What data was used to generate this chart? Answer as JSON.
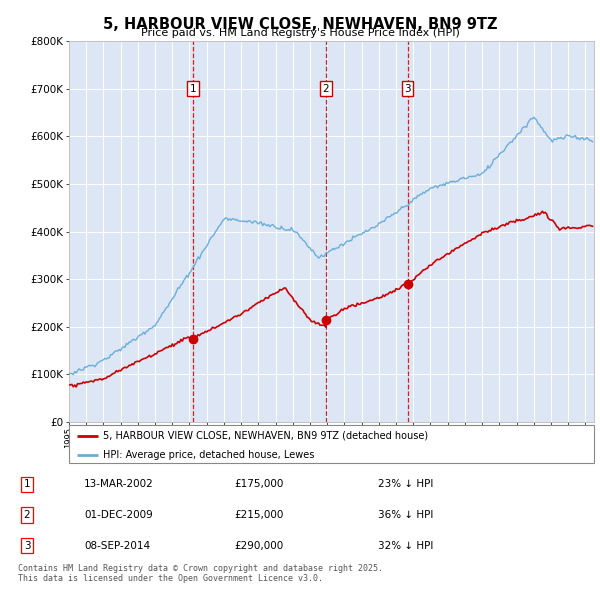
{
  "title": "5, HARBOUR VIEW CLOSE, NEWHAVEN, BN9 9TZ",
  "subtitle": "Price paid vs. HM Land Registry's House Price Index (HPI)",
  "bg_color": "#dce6f5",
  "hpi_color": "#6baed6",
  "price_color": "#cc0000",
  "vline_color": "#cc0000",
  "ylim": [
    0,
    800000
  ],
  "yticks": [
    0,
    100000,
    200000,
    300000,
    400000,
    500000,
    600000,
    700000,
    800000
  ],
  "legend_label_red": "5, HARBOUR VIEW CLOSE, NEWHAVEN, BN9 9TZ (detached house)",
  "legend_label_blue": "HPI: Average price, detached house, Lewes",
  "sale1_date": 2002.2,
  "sale1_price": 175000,
  "sale2_date": 2009.92,
  "sale2_price": 215000,
  "sale3_date": 2014.67,
  "sale3_price": 290000,
  "table": [
    [
      "1",
      "13-MAR-2002",
      "£175,000",
      "23% ↓ HPI"
    ],
    [
      "2",
      "01-DEC-2009",
      "£215,000",
      "36% ↓ HPI"
    ],
    [
      "3",
      "08-SEP-2014",
      "£290,000",
      "32% ↓ HPI"
    ]
  ],
  "footer": "Contains HM Land Registry data © Crown copyright and database right 2025.\nThis data is licensed under the Open Government Licence v3.0.",
  "xmin": 1995.0,
  "xmax": 2025.5
}
